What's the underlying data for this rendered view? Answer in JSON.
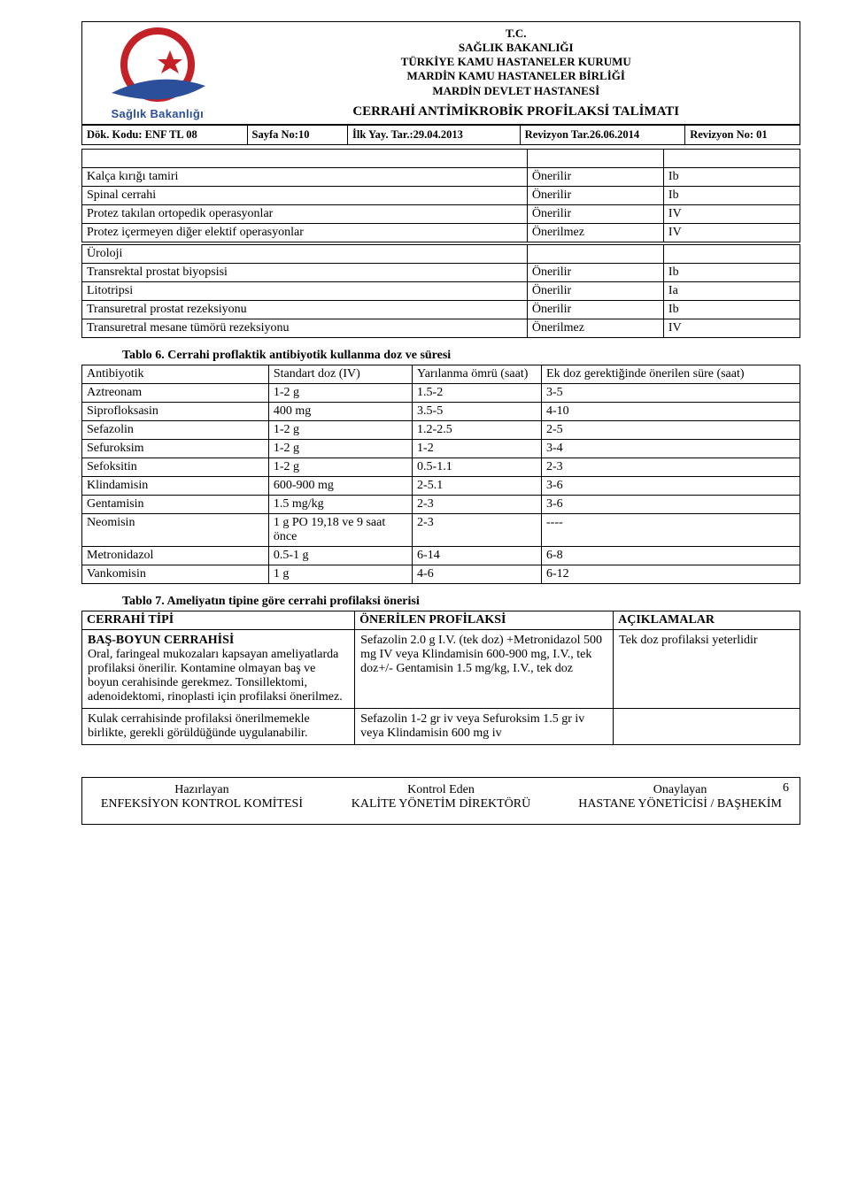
{
  "header": {
    "lines": [
      "T.C.",
      "SAĞLIK BAKANLIĞI",
      "TÜRKİYE KAMU HASTANELER KURUMU",
      "MARDİN KAMU HASTANELER BİRLİĞİ",
      "MARDİN DEVLET HASTANESİ"
    ],
    "doc_title": "CERRAHİ ANTİMİKROBİK PROFİLAKSİ  TALİMATI",
    "logo_caption": "Sağlık Bakanlığı",
    "logo_colors": {
      "crescent": "#c42027",
      "star": "#c42027",
      "swoosh": "#2b4f9b"
    },
    "meta": {
      "dok_kodu_label": "Dök. Kodu: ENF TL 08",
      "sayfa_label": "Sayfa No:10",
      "ilk_yay_label": "İlk Yay. Tar.:29.04.2013",
      "rev_tar_label": "Revizyon Tar.26.06.2014",
      "rev_no_label": "Revizyon No: 01"
    }
  },
  "list1": {
    "rows": [
      [
        "Kalça kırığı tamiri",
        "Önerilir",
        "Ib"
      ],
      [
        "Spinal cerrahi",
        "Önerilir",
        "Ib"
      ],
      [
        "Protez takılan ortopedik operasyonlar",
        "Önerilir",
        "IV"
      ],
      [
        "Protez içermeyen diğer elektif operasyonlar",
        "Önerilmez",
        "IV"
      ]
    ]
  },
  "list2": {
    "section": "Üroloji",
    "rows": [
      [
        "Transrektal prostat biyopsisi",
        "Önerilir",
        "Ib"
      ],
      [
        "Litotripsi",
        "Önerilir",
        "Ia"
      ],
      [
        "Transuretral prostat rezeksiyonu",
        "Önerilir",
        "Ib"
      ],
      [
        "Transuretral mesane tümörü rezeksiyonu",
        "Önerilmez",
        "IV"
      ]
    ]
  },
  "table6": {
    "title": "Tablo 6. Cerrahi proflaktik antibiyotik kullanma  doz ve süresi",
    "headers": [
      "Antibiyotik",
      "Standart doz (IV)",
      "Yarılanma ömrü (saat)",
      "Ek doz gerektiğinde önerilen süre (saat)"
    ],
    "rows": [
      [
        "Aztreonam",
        "1-2 g",
        "1.5-2",
        "3-5"
      ],
      [
        "Siprofloksasin",
        "400 mg",
        "3.5-5",
        "4-10"
      ],
      [
        "Sefazolin",
        "1-2 g",
        "1.2-2.5",
        "2-5"
      ],
      [
        "Sefuroksim",
        "1-2 g",
        "1-2",
        "3-4"
      ],
      [
        "Sefoksitin",
        "1-2 g",
        "0.5-1.1",
        "2-3"
      ],
      [
        "Klindamisin",
        "600-900 mg",
        "2-5.1",
        "3-6"
      ],
      [
        "Gentamisin",
        "1.5 mg/kg",
        "2-3",
        "3-6"
      ],
      [
        "Neomisin",
        "1 g PO 19,18 ve 9 saat önce",
        "2-3",
        "----"
      ],
      [
        "Metronidazol",
        "0.5-1 g",
        "6-14",
        "6-8"
      ],
      [
        "Vankomisin",
        "1 g",
        "4-6",
        "6-12"
      ]
    ]
  },
  "table7": {
    "title": "Tablo 7. Ameliyatın tipine göre cerrahi profilaksi önerisi",
    "headers": [
      "CERRAHİ TİPİ",
      "ÖNERİLEN PROFİLAKSİ",
      "AÇIKLAMALAR"
    ],
    "row1": {
      "c1_title": "BAŞ-BOYUN CERRAHİSİ",
      "c1_body": "Oral, faringeal mukozaları kapsayan ameliyatlarda profilaksi önerilir. Kontamine olmayan baş ve boyun cerahisinde gerekmez. Tonsillektomi, adenoidektomi, rinoplasti için profilaksi önerilmez.",
      "c2": "Sefazolin 2.0 g I.V. (tek doz) +Metronidazol 500 mg IV  veya Klindamisin 600-900 mg, I.V., tek doz+/- Gentamisin 1.5 mg/kg, I.V., tek doz",
      "c3": "Tek doz profilaksi yeterlidir"
    },
    "row2": {
      "c1": "Kulak cerrahisinde profilaksi önerilmemekle birlikte, gerekli görüldüğünde uygulanabilir.",
      "c2": "Sefazolin 1-2 gr iv  veya Sefuroksim 1.5 gr iv veya Klindamisin 600 mg iv",
      "c3": ""
    }
  },
  "footer": {
    "col1_t": "Hazırlayan",
    "col1_b": "ENFEKSİYON KONTROL KOMİTESİ",
    "col2_t": "Kontrol Eden",
    "col2_b": "KALİTE YÖNETİM DİREKTÖRÜ",
    "col3_t": "Onaylayan",
    "col3_b": "HASTANE YÖNETİCİSİ / BAŞHEKİM",
    "page_num": "6"
  }
}
